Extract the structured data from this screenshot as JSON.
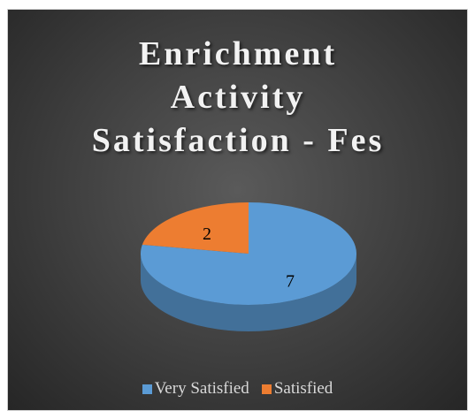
{
  "chart_data": {
    "type": "pie",
    "title": "Enrichment Activity Satisfaction - Fes",
    "categories": [
      "Very Satisfied",
      "Satisfied"
    ],
    "values": [
      7,
      2
    ],
    "colors": [
      "#5b9bd5",
      "#ed7d31"
    ],
    "legend": "bottom"
  }
}
